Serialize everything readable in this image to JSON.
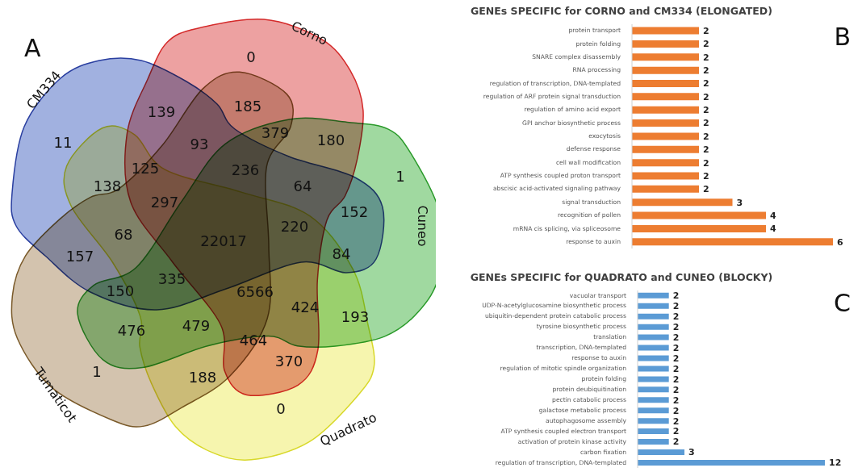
{
  "chart_data": [
    {
      "type": "other",
      "title": "A",
      "categories": [
        "CM334",
        "Corno",
        "Cuneo",
        "Quadrato",
        "Tumaticot"
      ],
      "colors": [
        "#8a9ed8",
        "#e88a8a",
        "#88d088",
        "#f4f29a",
        "#c8b49a"
      ],
      "annotations": [
        "11",
        "139",
        "185",
        "379",
        "180",
        "0",
        "93",
        "125",
        "138",
        "236",
        "64",
        "1",
        "152",
        "297",
        "68",
        "22017",
        "220",
        "84",
        "157",
        "150",
        "335",
        "6566",
        "424",
        "193",
        "476",
        "479",
        "464",
        "370",
        "188",
        "1",
        "0"
      ]
    },
    {
      "type": "bar",
      "orientation": "horizontal",
      "title": "GENEs SPECIFIC for CORNO and CM334 (ELONGATED)",
      "color": "#ed7d31",
      "data_labels": true,
      "annotations": [
        "B"
      ],
      "categories": [
        "protein transport",
        "protein folding",
        "SNARE complex disassembly",
        "RNA processing",
        "regulation of transcription, DNA-templated",
        "regulation of ARF protein signal transduction",
        "regulation of amino acid export",
        "GPI anchor biosynthetic process",
        "exocytosis",
        "defense response",
        "cell wall modification",
        "ATP synthesis coupled proton transport",
        "abscisic acid-activated signaling pathway",
        "signal transduction",
        "recognition of pollen",
        "mRNA cis splicing, via spliceosome",
        "response to auxin"
      ],
      "values": [
        2,
        2,
        2,
        2,
        2,
        2,
        2,
        2,
        2,
        2,
        2,
        2,
        2,
        3,
        4,
        4,
        6
      ]
    },
    {
      "type": "bar",
      "orientation": "horizontal",
      "title": "GENEs SPECIFIC for QUADRATO and CUNEO (BLOCKY)",
      "color": "#5b9bd5",
      "data_labels": true,
      "annotations": [
        "C"
      ],
      "categories": [
        "vacuolar transport",
        "UDP-N-acetylglucosamine biosynthetic process",
        "ubiquitin-dependent protein catabolic process",
        "tyrosine biosynthetic process",
        "translation",
        "transcription, DNA-templated",
        "response to auxin",
        "regulation of mitotic spindle organization",
        "protein folding",
        "protein deubiquitination",
        "pectin catabolic process",
        "galactose metabolic process",
        "autophagosome assembly",
        "ATP synthesis coupled electron transport",
        "activation of protein kinase activity",
        "carbon fixation",
        "regulation of transcription, DNA-templated"
      ],
      "values": [
        2,
        2,
        2,
        2,
        2,
        2,
        2,
        2,
        2,
        2,
        2,
        2,
        2,
        2,
        2,
        3,
        12
      ]
    }
  ]
}
